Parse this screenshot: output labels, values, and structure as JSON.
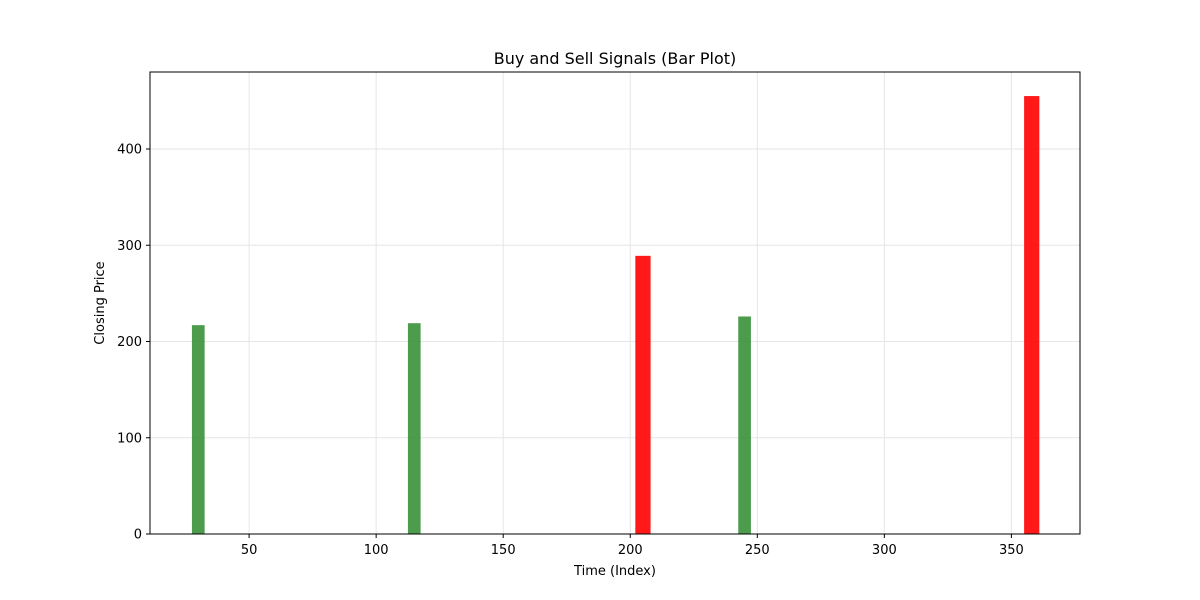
{
  "chart_data": {
    "type": "bar",
    "title": "Buy and Sell Signals (Bar Plot)",
    "xlabel": "Time (Index)",
    "ylabel": "Closing Price",
    "xlim": [
      11,
      377
    ],
    "ylim": [
      0,
      480
    ],
    "xticks": [
      50,
      100,
      150,
      200,
      250,
      300,
      350
    ],
    "yticks": [
      0,
      100,
      200,
      300,
      400
    ],
    "grid": true,
    "series": [
      {
        "color": "#2e8b2e",
        "bar_width": 5,
        "points": [
          {
            "x": 30,
            "y": 217
          },
          {
            "x": 115,
            "y": 219
          },
          {
            "x": 245,
            "y": 226
          }
        ]
      },
      {
        "color": "#ff0000",
        "bar_width": 6,
        "points": [
          {
            "x": 205,
            "y": 289
          },
          {
            "x": 358,
            "y": 455
          }
        ]
      }
    ]
  }
}
